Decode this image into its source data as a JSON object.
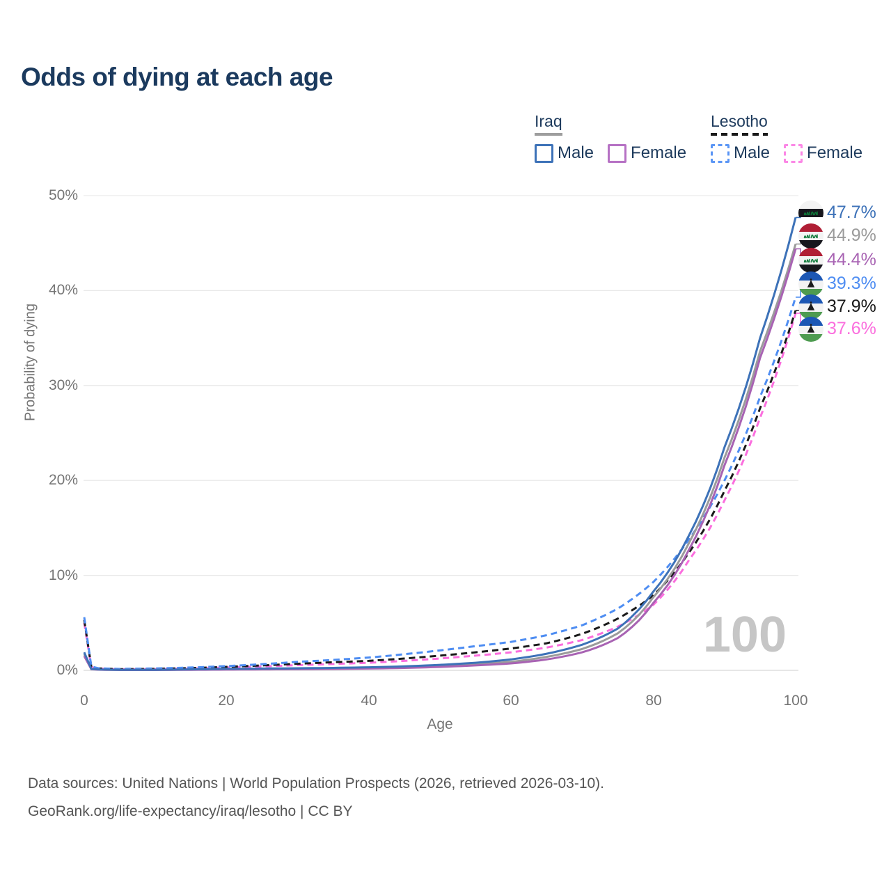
{
  "title": "Odds of dying at each age",
  "legend": {
    "groups": [
      {
        "label": "Iraq",
        "line_style": "solid",
        "underline_color": "#9e9e9e",
        "items": [
          {
            "label": "Male",
            "color": "#3d72b8"
          },
          {
            "label": "Female",
            "color": "#b671c4"
          }
        ]
      },
      {
        "label": "Lesotho",
        "line_style": "dashed",
        "underline_color": "#1a1a1a",
        "items": [
          {
            "label": "Male",
            "color": "#5b96f5"
          },
          {
            "label": "Female",
            "color": "#fb87e6"
          }
        ]
      }
    ]
  },
  "chart_data": {
    "type": "line",
    "title": "Odds of dying at each age",
    "xlabel": "Age",
    "ylabel": "Probability of dying",
    "xlim": [
      0,
      100
    ],
    "ylim": [
      0,
      50
    ],
    "x_ticks": [
      "0",
      "20",
      "40",
      "60",
      "80",
      "100"
    ],
    "y_ticks": [
      "0%",
      "10%",
      "20%",
      "30%",
      "40%",
      "50%"
    ],
    "grid": "horizontal only",
    "age_indicator": "100",
    "x": [
      0,
      1,
      2,
      5,
      10,
      15,
      20,
      25,
      30,
      35,
      40,
      45,
      50,
      55,
      60,
      65,
      70,
      75,
      80,
      85,
      90,
      95,
      100
    ],
    "series": [
      {
        "id": "iraq_male",
        "name": "Iraq male",
        "flag": "iraq",
        "style": "solid",
        "dashed": false,
        "color": "#3d72b8",
        "end_label": "47.7%",
        "end_value": 47.7,
        "values": [
          1.9,
          0.15,
          0.09,
          0.06,
          0.06,
          0.1,
          0.16,
          0.19,
          0.22,
          0.26,
          0.32,
          0.42,
          0.58,
          0.8,
          1.15,
          1.75,
          2.7,
          4.4,
          8.3,
          14.2,
          23.5,
          35.0,
          47.7
        ]
      },
      {
        "id": "iraq_both",
        "name": "Iraq both sexes",
        "flag": "iraq",
        "style": "solid",
        "dashed": false,
        "color": "#9b9b9b",
        "end_label": "44.9%",
        "end_value": 44.9,
        "values": [
          1.7,
          0.13,
          0.08,
          0.05,
          0.05,
          0.08,
          0.12,
          0.14,
          0.17,
          0.2,
          0.25,
          0.33,
          0.46,
          0.65,
          0.9,
          1.42,
          2.25,
          3.9,
          7.7,
          13.4,
          22.4,
          33.6,
          44.9
        ]
      },
      {
        "id": "iraq_female",
        "name": "Iraq female",
        "flag": "iraq",
        "style": "solid",
        "dashed": false,
        "color": "#a863b3",
        "end_label": "44.4%",
        "end_value": 44.4,
        "values": [
          1.5,
          0.12,
          0.07,
          0.04,
          0.04,
          0.06,
          0.08,
          0.1,
          0.12,
          0.15,
          0.19,
          0.26,
          0.36,
          0.52,
          0.73,
          1.15,
          1.9,
          3.4,
          7.1,
          12.7,
          21.6,
          32.9,
          44.4
        ]
      },
      {
        "id": "lesotho_male",
        "name": "Lesotho male",
        "flag": "lesotho",
        "style": "dashed",
        "dashed": true,
        "color": "#4e8df2",
        "end_label": "39.3%",
        "end_value": 39.3,
        "values": [
          5.6,
          0.4,
          0.22,
          0.15,
          0.2,
          0.3,
          0.45,
          0.65,
          0.9,
          1.1,
          1.35,
          1.7,
          2.1,
          2.55,
          3.0,
          3.7,
          4.75,
          6.5,
          9.3,
          13.8,
          20.0,
          28.8,
          39.3
        ]
      },
      {
        "id": "lesotho_both",
        "name": "Lesotho both sexes",
        "flag": "lesotho",
        "style": "dashed",
        "dashed": true,
        "color": "#1a1a1a",
        "end_label": "37.9%",
        "end_value": 37.9,
        "values": [
          5.3,
          0.37,
          0.2,
          0.13,
          0.16,
          0.24,
          0.37,
          0.52,
          0.7,
          0.85,
          1.0,
          1.25,
          1.55,
          1.9,
          2.3,
          2.85,
          3.85,
          5.45,
          7.9,
          12.4,
          18.9,
          27.6,
          37.9
        ]
      },
      {
        "id": "lesotho_female",
        "name": "Lesotho female",
        "flag": "lesotho",
        "style": "dashed",
        "dashed": true,
        "color": "#fb6ede",
        "end_label": "37.6%",
        "end_value": 37.6,
        "values": [
          5.0,
          0.34,
          0.18,
          0.11,
          0.13,
          0.19,
          0.3,
          0.42,
          0.55,
          0.67,
          0.8,
          1.0,
          1.25,
          1.55,
          1.9,
          2.4,
          3.2,
          4.6,
          6.9,
          11.6,
          17.9,
          26.6,
          37.6
        ]
      }
    ]
  },
  "footer": {
    "line1": "Data sources: United Nations | World Population Prospects (2026, retrieved 2026-03-10).",
    "line2": "GeoRank.org/life-expectancy/iraq/lesotho | CC BY"
  }
}
